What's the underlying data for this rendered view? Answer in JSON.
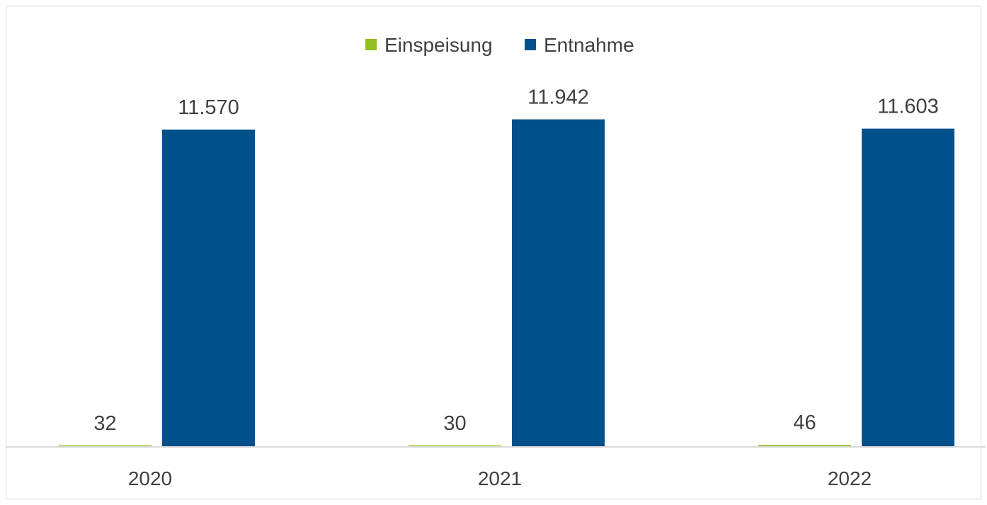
{
  "chart_data": {
    "type": "bar",
    "categories": [
      "2020",
      "2021",
      "2022"
    ],
    "series": [
      {
        "name": "Einspeisung",
        "color": "#92c01f",
        "values": [
          32,
          30,
          46
        ],
        "labels": [
          "32",
          "30",
          "46"
        ]
      },
      {
        "name": "Entnahme",
        "color": "#00508c",
        "values": [
          11570,
          11942,
          11603
        ],
        "labels": [
          "11.570",
          "11.942",
          "11.603"
        ]
      }
    ],
    "ylim": [
      0,
      14000
    ],
    "legend_position": "top-center",
    "grid": false
  }
}
